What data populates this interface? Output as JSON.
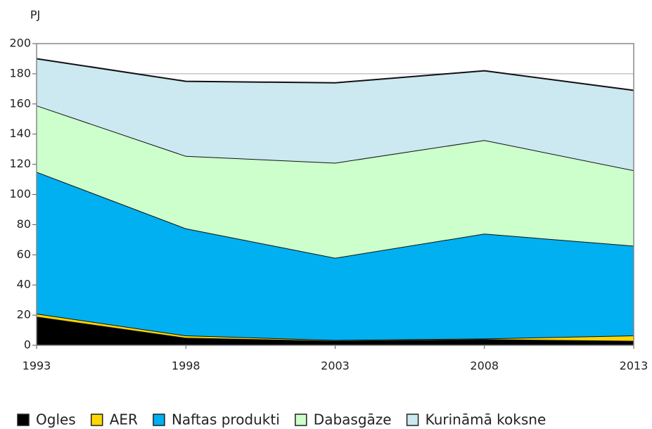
{
  "chart_data": {
    "type": "stacked_area",
    "y_label": "PJ",
    "x": [
      1993,
      1998,
      2003,
      2008,
      2013
    ],
    "xlim": [
      1993,
      2013
    ],
    "xticks": [
      1993,
      1998,
      2003,
      2008,
      2013
    ],
    "ylim": [
      0,
      200
    ],
    "yticks": [
      0,
      20,
      40,
      60,
      80,
      100,
      120,
      140,
      160,
      180,
      200
    ],
    "grid": true,
    "legend": "bottom",
    "series": [
      {
        "name": "Ogles",
        "color": "#000000",
        "values": [
          19,
          5,
          3,
          4,
          3
        ]
      },
      {
        "name": "AER",
        "color": "#ffd700",
        "values": [
          2,
          1.5,
          0.5,
          0.5,
          3.5
        ]
      },
      {
        "name": "Naftas produkti",
        "color": "#00b0f0",
        "values": [
          94,
          71,
          54.5,
          69.5,
          59.5
        ]
      },
      {
        "name": "Dabasgāze",
        "color": "#ccffcc",
        "values": [
          44,
          48,
          63,
          62,
          50
        ]
      },
      {
        "name": "Kurināmā koksne",
        "color": "#cce8f0",
        "values": [
          31,
          49.5,
          53,
          46,
          53
        ]
      }
    ]
  }
}
